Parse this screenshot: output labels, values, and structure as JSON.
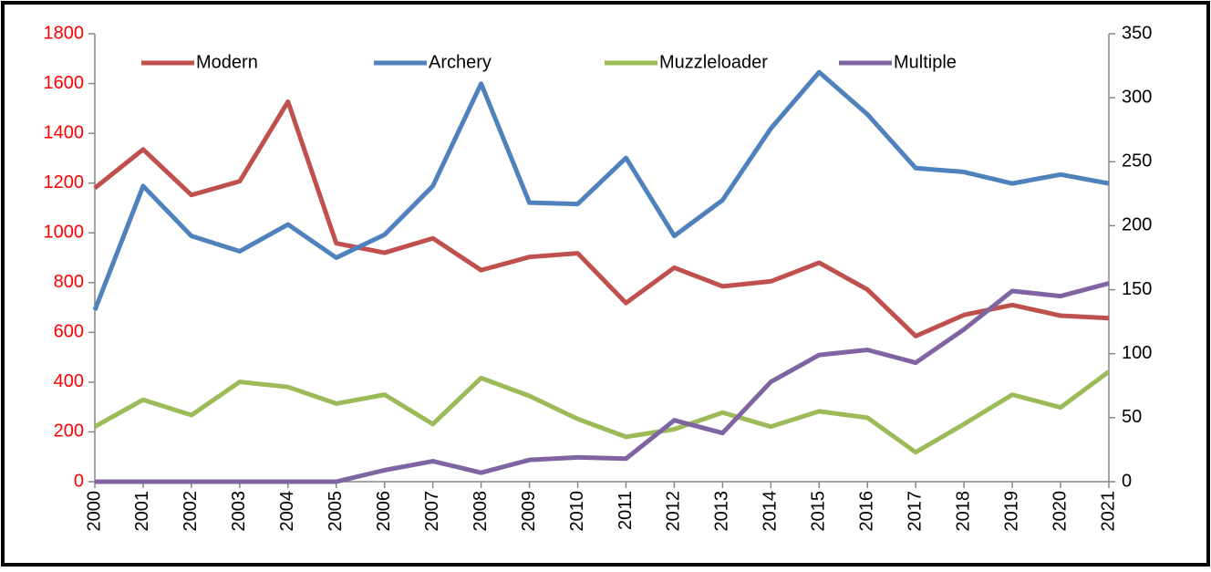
{
  "chart_data": {
    "type": "line",
    "categories": [
      "2000",
      "2001",
      "2002",
      "2003",
      "2004",
      "2005",
      "2006",
      "2007",
      "2008",
      "2009",
      "2010",
      "2011",
      "2012",
      "2013",
      "2014",
      "2015",
      "2016",
      "2017",
      "2018",
      "2019",
      "2020",
      "2021"
    ],
    "series": [
      {
        "name": "Modern",
        "color": "#c0504d",
        "values": [
          1180,
          1335,
          1152,
          1207,
          1527,
          958,
          920,
          978,
          850,
          903,
          918,
          718,
          860,
          785,
          805,
          880,
          772,
          585,
          670,
          710,
          667,
          657
        ]
      },
      {
        "name": "Archery",
        "color": "#4f81bd",
        "axis": "y2",
        "values": [
          134,
          231,
          192,
          180,
          201,
          175,
          193,
          231,
          311,
          218,
          217,
          253,
          192,
          220,
          276,
          320,
          287,
          245,
          242,
          233,
          240,
          233
        ]
      },
      {
        "name": "Muzzleloader",
        "color": "#9bbb59",
        "axis": "y2",
        "values": [
          43,
          64,
          52,
          78,
          74,
          61,
          68,
          45,
          81,
          67,
          49,
          35,
          41,
          54,
          43,
          55,
          50,
          23,
          45,
          68,
          58,
          86
        ]
      },
      {
        "name": "Multiple",
        "color": "#8064a2",
        "axis": "y2",
        "values": [
          0,
          0,
          0,
          0,
          0,
          0,
          9,
          16,
          7,
          17,
          19,
          18,
          48,
          38,
          78,
          99,
          103,
          93,
          119,
          149,
          145,
          155
        ]
      }
    ],
    "ylim": [
      0,
      1800
    ],
    "yticks": [
      0,
      200,
      400,
      600,
      800,
      1000,
      1200,
      1400,
      1600,
      1800
    ],
    "ytick_color": "#ff0000",
    "y2lim": [
      0,
      350
    ],
    "y2ticks": [
      0,
      50,
      100,
      150,
      200,
      250,
      300,
      350
    ]
  }
}
